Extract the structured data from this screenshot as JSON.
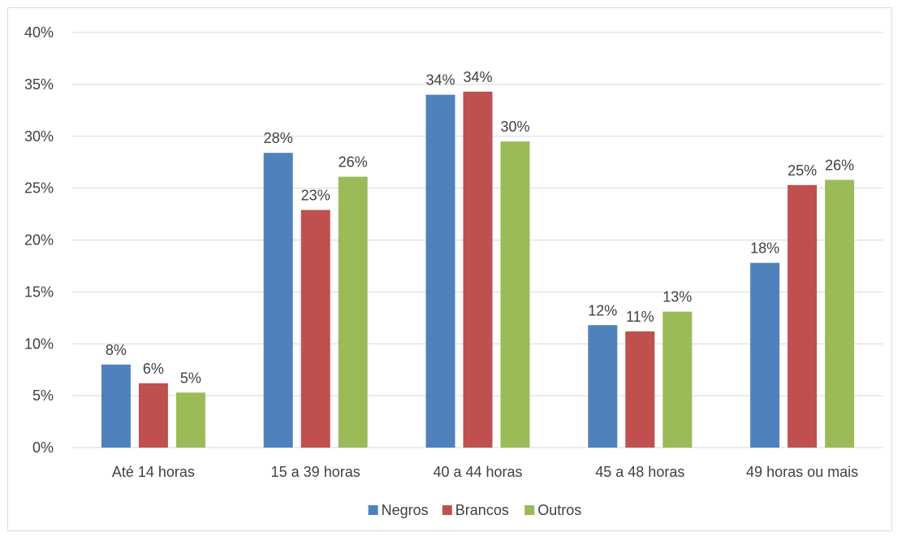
{
  "chart_data": {
    "type": "bar",
    "categories": [
      "Até 14 horas",
      "15 a 39 horas",
      "40 a 44 horas",
      "45 a 48 horas",
      "49 horas ou mais"
    ],
    "series": [
      {
        "name": "Negros",
        "color": "#4f81bd",
        "values": [
          8.0,
          28.4,
          34.0,
          11.8,
          17.8
        ],
        "labels": [
          "8%",
          "28%",
          "34%",
          "12%",
          "18%"
        ]
      },
      {
        "name": "Brancos",
        "color": "#c0504d",
        "values": [
          6.2,
          22.9,
          34.3,
          11.2,
          25.3
        ],
        "labels": [
          "6%",
          "23%",
          "34%",
          "11%",
          "25%"
        ]
      },
      {
        "name": "Outros",
        "color": "#9bbb59",
        "values": [
          5.3,
          26.1,
          29.5,
          13.1,
          25.8
        ],
        "labels": [
          "5%",
          "26%",
          "30%",
          "13%",
          "26%"
        ]
      }
    ],
    "ylim": [
      0,
      40
    ],
    "yticks": [
      "0%",
      "5%",
      "10%",
      "15%",
      "20%",
      "25%",
      "30%",
      "35%",
      "40%"
    ],
    "gridlines": true,
    "legend_position": "bottom",
    "gridline_color": "#d9d9d9"
  }
}
